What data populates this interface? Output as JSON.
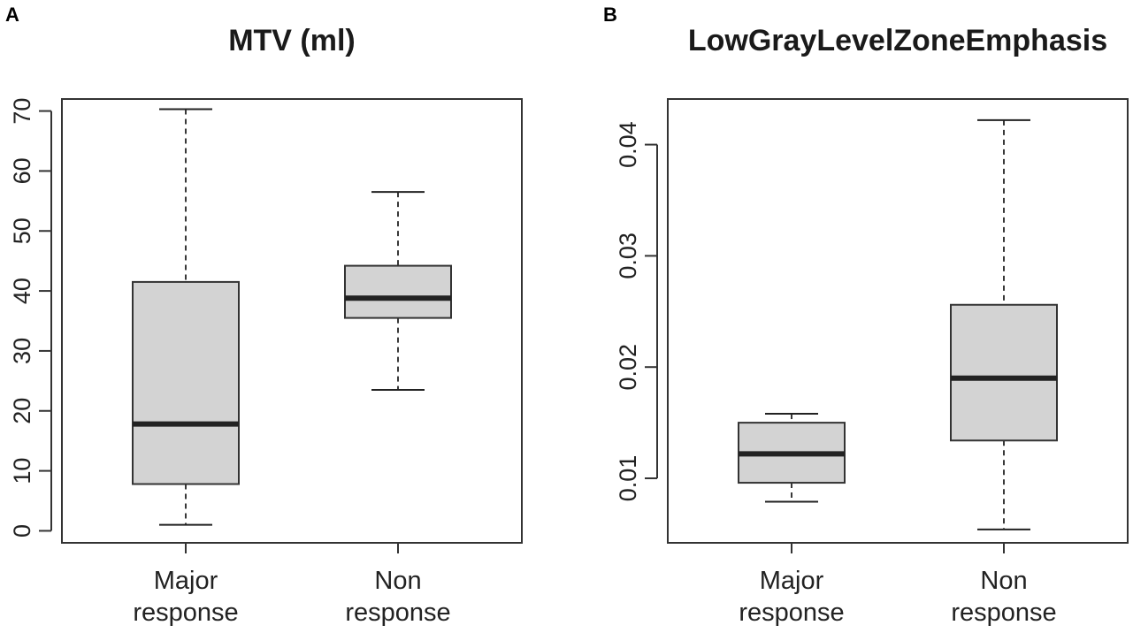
{
  "chart_data": [
    {
      "type": "boxplot",
      "panel_label": "A",
      "title": "MTV (ml)",
      "categories": [
        [
          "Major",
          "response"
        ],
        [
          "Non",
          "response"
        ]
      ],
      "ylim": [
        -2,
        72
      ],
      "yticks": [
        0,
        10,
        20,
        30,
        40,
        50,
        60,
        70
      ],
      "ytick_labels": [
        "0",
        "10",
        "20",
        "30",
        "40",
        "50",
        "60",
        "70"
      ],
      "boxes": [
        {
          "name": "Major response",
          "min": 1,
          "q1": 7.8,
          "median": 17.8,
          "q3": 41.5,
          "max": 70.3
        },
        {
          "name": "Non response",
          "min": 23.5,
          "q1": 35.5,
          "median": 38.8,
          "q3": 44.2,
          "max": 56.5
        }
      ]
    },
    {
      "type": "boxplot",
      "panel_label": "B",
      "title": "LowGrayLevelZoneEmphasis",
      "categories": [
        [
          "Major",
          "response"
        ],
        [
          "Non",
          "response"
        ]
      ],
      "ylim": [
        0.0042,
        0.0441
      ],
      "yticks": [
        0.01,
        0.02,
        0.03,
        0.04
      ],
      "ytick_labels": [
        "0.01",
        "0.02",
        "0.03",
        "0.04"
      ],
      "boxes": [
        {
          "name": "Major response",
          "min": 0.0079,
          "q1": 0.0096,
          "median": 0.0122,
          "q3": 0.015,
          "max": 0.0158
        },
        {
          "name": "Non response",
          "min": 0.0054,
          "q1": 0.0134,
          "median": 0.019,
          "q3": 0.0256,
          "max": 0.0422
        }
      ]
    }
  ]
}
